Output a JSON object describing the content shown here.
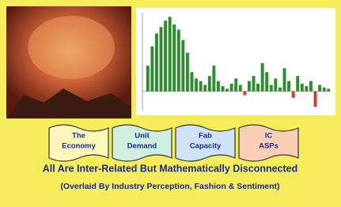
{
  "chart": {
    "type": "bar",
    "values": [
      20,
      35,
      45,
      50,
      55,
      58,
      52,
      48,
      40,
      30,
      15,
      10,
      8,
      5,
      12,
      20,
      8,
      4,
      2,
      6,
      10,
      5,
      -3,
      8,
      12,
      6,
      22,
      15,
      5,
      10,
      3,
      18,
      8,
      -5,
      12,
      6,
      4,
      8,
      -12,
      5,
      3,
      2
    ],
    "ylim": [
      -15,
      60
    ],
    "color": "#2e8b2e",
    "negative_color": "#d43a2a"
  },
  "banners": [
    {
      "lines": [
        "The",
        "Economy"
      ],
      "color": "#fbf7b8"
    },
    {
      "lines": [
        "Unit",
        "Demand"
      ],
      "color": "#cfeedd"
    },
    {
      "lines": [
        "Fab",
        "Capacity"
      ],
      "color": "#cde3f5"
    },
    {
      "lines": [
        "IC",
        "ASPs"
      ],
      "color": "#f8cfb4"
    }
  ],
  "caption": {
    "line1": "All Are Inter-Related But Mathematically Disconnected",
    "line2": "(Overlaid By Industry Perception, Fashion & Sentiment)"
  }
}
